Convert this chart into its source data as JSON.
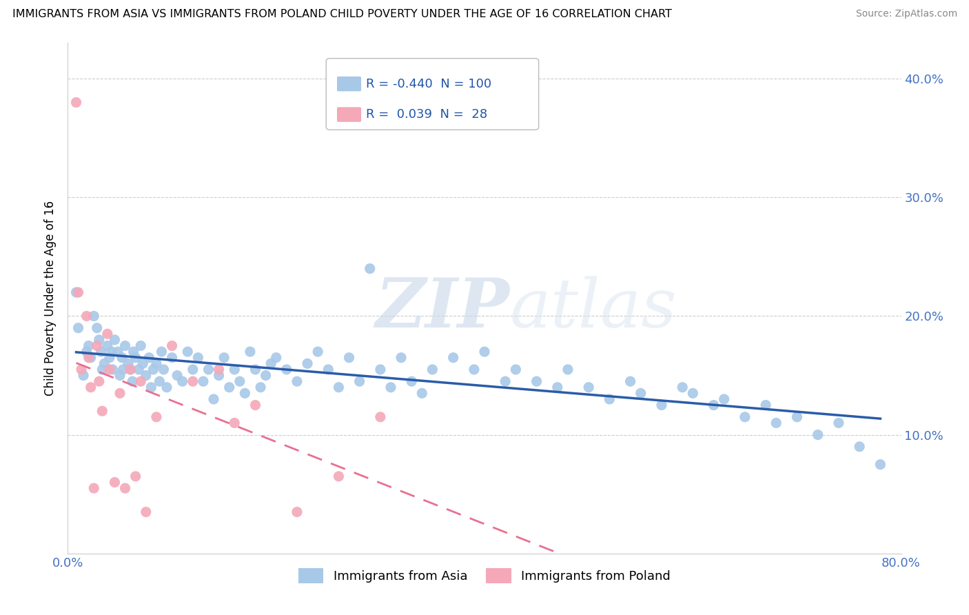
{
  "title": "IMMIGRANTS FROM ASIA VS IMMIGRANTS FROM POLAND CHILD POVERTY UNDER THE AGE OF 16 CORRELATION CHART",
  "source": "Source: ZipAtlas.com",
  "ylabel": "Child Poverty Under the Age of 16",
  "xlim": [
    0.0,
    0.8
  ],
  "ylim": [
    0.0,
    0.43
  ],
  "yticks": [
    0.1,
    0.2,
    0.3,
    0.4
  ],
  "xticks": [
    0.0,
    0.1,
    0.2,
    0.3,
    0.4,
    0.5,
    0.6,
    0.7,
    0.8
  ],
  "asia_color": "#a8c8e8",
  "poland_color": "#f4a8b8",
  "asia_line_color": "#2a5ca8",
  "poland_line_color": "#e87090",
  "watermark_zip": "ZIP",
  "watermark_atlas": "atlas",
  "legend_asia_label": "Immigrants from Asia",
  "legend_poland_label": "Immigrants from Poland",
  "legend_asia_R": "-0.440",
  "legend_asia_N": "100",
  "legend_poland_R": "0.039",
  "legend_poland_N": "28",
  "asia_x": [
    0.008,
    0.01,
    0.015,
    0.018,
    0.02,
    0.022,
    0.025,
    0.028,
    0.03,
    0.032,
    0.033,
    0.035,
    0.038,
    0.04,
    0.042,
    0.043,
    0.045,
    0.048,
    0.05,
    0.052,
    0.053,
    0.055,
    0.058,
    0.06,
    0.062,
    0.063,
    0.065,
    0.068,
    0.07,
    0.072,
    0.075,
    0.078,
    0.08,
    0.082,
    0.085,
    0.088,
    0.09,
    0.092,
    0.095,
    0.1,
    0.105,
    0.11,
    0.115,
    0.12,
    0.125,
    0.13,
    0.135,
    0.14,
    0.145,
    0.15,
    0.155,
    0.16,
    0.165,
    0.17,
    0.175,
    0.18,
    0.185,
    0.19,
    0.195,
    0.2,
    0.21,
    0.22,
    0.23,
    0.24,
    0.25,
    0.26,
    0.27,
    0.28,
    0.29,
    0.3,
    0.31,
    0.32,
    0.33,
    0.34,
    0.35,
    0.37,
    0.39,
    0.4,
    0.42,
    0.43,
    0.45,
    0.47,
    0.48,
    0.5,
    0.52,
    0.54,
    0.55,
    0.57,
    0.59,
    0.6,
    0.62,
    0.63,
    0.65,
    0.67,
    0.68,
    0.7,
    0.72,
    0.74,
    0.76,
    0.78
  ],
  "asia_y": [
    0.22,
    0.19,
    0.15,
    0.17,
    0.175,
    0.165,
    0.2,
    0.19,
    0.18,
    0.17,
    0.155,
    0.16,
    0.175,
    0.165,
    0.17,
    0.155,
    0.18,
    0.17,
    0.15,
    0.165,
    0.155,
    0.175,
    0.16,
    0.155,
    0.145,
    0.17,
    0.165,
    0.155,
    0.175,
    0.16,
    0.15,
    0.165,
    0.14,
    0.155,
    0.16,
    0.145,
    0.17,
    0.155,
    0.14,
    0.165,
    0.15,
    0.145,
    0.17,
    0.155,
    0.165,
    0.145,
    0.155,
    0.13,
    0.15,
    0.165,
    0.14,
    0.155,
    0.145,
    0.135,
    0.17,
    0.155,
    0.14,
    0.15,
    0.16,
    0.165,
    0.155,
    0.145,
    0.16,
    0.17,
    0.155,
    0.14,
    0.165,
    0.145,
    0.24,
    0.155,
    0.14,
    0.165,
    0.145,
    0.135,
    0.155,
    0.165,
    0.155,
    0.17,
    0.145,
    0.155,
    0.145,
    0.14,
    0.155,
    0.14,
    0.13,
    0.145,
    0.135,
    0.125,
    0.14,
    0.135,
    0.125,
    0.13,
    0.115,
    0.125,
    0.11,
    0.115,
    0.1,
    0.11,
    0.09,
    0.075
  ],
  "poland_x": [
    0.008,
    0.01,
    0.013,
    0.018,
    0.02,
    0.022,
    0.025,
    0.028,
    0.03,
    0.033,
    0.038,
    0.04,
    0.045,
    0.05,
    0.055,
    0.06,
    0.065,
    0.07,
    0.075,
    0.085,
    0.1,
    0.12,
    0.145,
    0.16,
    0.18,
    0.22,
    0.26,
    0.3
  ],
  "poland_y": [
    0.38,
    0.22,
    0.155,
    0.2,
    0.165,
    0.14,
    0.055,
    0.175,
    0.145,
    0.12,
    0.185,
    0.155,
    0.06,
    0.135,
    0.055,
    0.155,
    0.065,
    0.145,
    0.035,
    0.115,
    0.175,
    0.145,
    0.155,
    0.11,
    0.125,
    0.035,
    0.065,
    0.115
  ]
}
